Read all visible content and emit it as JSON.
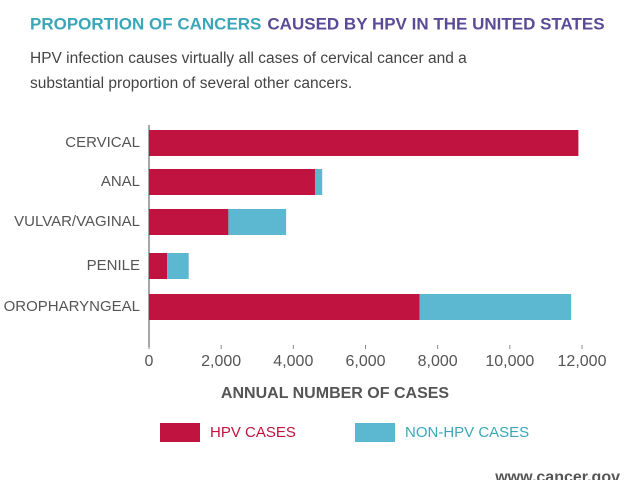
{
  "chart_data": {
    "type": "stacked-barh",
    "title": "PROPORTION OF CANCERS",
    "title_part2": "CAUSED BY HPV IN THE UNITED STATES",
    "subtitle": "HPV infection causes virtually all cases of cervical cancer and a substantial proportion of several other cancers.",
    "categories": [
      "CERVICAL",
      "ANAL",
      "VULVAR/VAGINAL",
      "PENILE",
      "OROPHARYNGEAL"
    ],
    "series": [
      {
        "name": "HPV CASES",
        "color": "#c0133f",
        "values": [
          11900,
          4600,
          2200,
          500,
          7500
        ]
      },
      {
        "name": "NON-HPV CASES",
        "color": "#5bb8d0",
        "values": [
          0,
          200,
          1600,
          600,
          4200
        ]
      }
    ],
    "xlabel": "ANNUAL NUMBER OF CASES",
    "xlim": [
      0,
      12000
    ],
    "xticks": [
      0,
      {
        "value": 2000,
        "label": "2,000"
      },
      {
        "value": 4000,
        "label": "4,000"
      },
      {
        "value": 6000,
        "label": "6,000"
      },
      {
        "value": 8000,
        "label": "8,000"
      },
      {
        "value": 10000,
        "label": "10,000"
      },
      {
        "value": 12000,
        "label": "12,000"
      }
    ],
    "source": "www.cancer.gov"
  }
}
